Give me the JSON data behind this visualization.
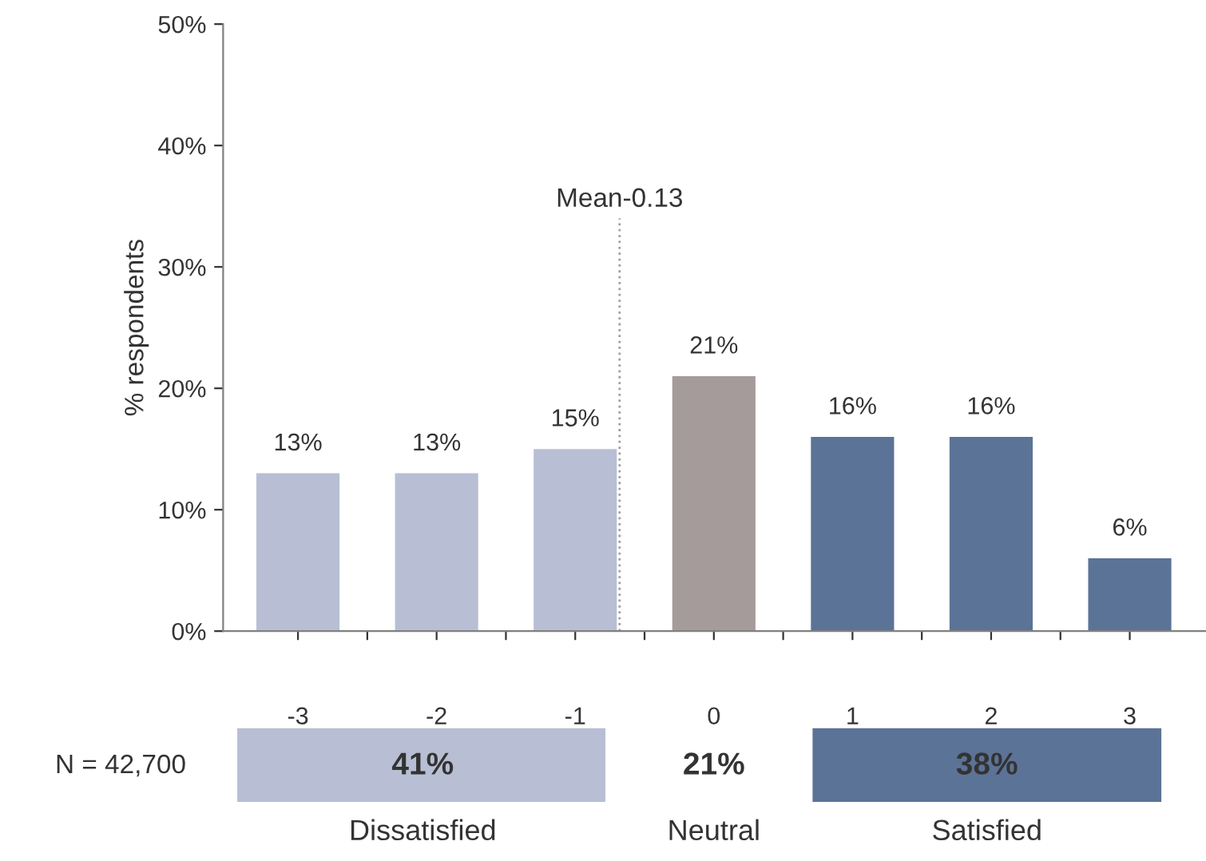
{
  "chart_data": {
    "type": "bar",
    "x": [
      -3,
      -2,
      -1,
      0,
      1,
      2,
      3
    ],
    "values": [
      13,
      13,
      15,
      21,
      16,
      16,
      6
    ],
    "value_labels": [
      "13%",
      "13%",
      "15%",
      "21%",
      "16%",
      "16%",
      "6%"
    ],
    "colors": [
      "#b8bfd4",
      "#b8bfd4",
      "#b8bfd4",
      "#a59b9b",
      "#5b7396",
      "#5b7396",
      "#5b7396"
    ],
    "ylabel": "% respondents",
    "ylim": [
      0,
      50
    ],
    "yticks": [
      {
        "value": 0,
        "label": "0%"
      },
      {
        "value": 10,
        "label": "10%"
      },
      {
        "value": 20,
        "label": "20%"
      },
      {
        "value": 30,
        "label": "30%"
      },
      {
        "value": 40,
        "label": "40%"
      },
      {
        "value": 50,
        "label": "50%"
      }
    ],
    "xlim": [
      -3.54,
      3.55
    ],
    "xticks": [
      -3,
      -2,
      -1,
      0,
      1,
      2,
      3,
      {
        "value": -2.5,
        "label": null
      },
      {
        "value": -1.5,
        "label": null
      },
      {
        "value": -0.5,
        "label": null
      },
      {
        "value": 0.5,
        "label": null
      },
      {
        "value": 1.5,
        "label": null
      },
      {
        "value": 2.5,
        "label": null
      }
    ],
    "ref_lines": [
      {
        "axis": "x",
        "value": -0.68,
        "label": "Mean-0.13",
        "color": "#a0a0a0",
        "line_style": "dotted"
      }
    ],
    "annotations": [
      "N = 42,700",
      "41%",
      "Dissatisfied",
      "21%",
      "Neutral",
      "38%",
      "Satisfied"
    ],
    "grid": false,
    "legend": false
  }
}
